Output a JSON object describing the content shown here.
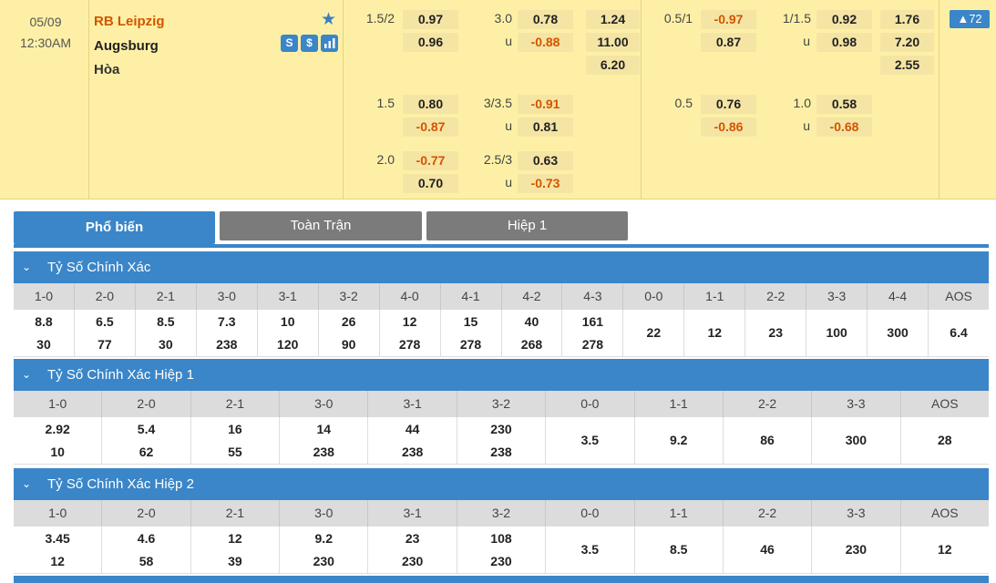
{
  "match": {
    "date": "05/09",
    "time": "12:30AM",
    "home": "RB Leipzig",
    "away": "Augsburg",
    "draw": "Hòa",
    "more_count": "▲72"
  },
  "icons": [
    "star-icon",
    "stats-s-icon",
    "dollar-icon",
    "bar-chart-icon"
  ],
  "odds": {
    "ft_hdp": [
      [
        "1.5/2",
        "0.97",
        "0.96"
      ],
      [
        "1.5",
        "0.80",
        "-0.87"
      ],
      [
        "2.0",
        "-0.77",
        "0.70"
      ]
    ],
    "ft_ou": [
      [
        "3.0",
        "0.78",
        "u",
        "-0.88"
      ],
      [
        "3/3.5",
        "-0.91",
        "u",
        "0.81"
      ],
      [
        "2.5/3",
        "0.63",
        "u",
        "-0.73"
      ]
    ],
    "ft_1x2": [
      "1.24",
      "11.00",
      "6.20"
    ],
    "h1_hdp": [
      [
        "0.5/1",
        "-0.97",
        "0.87"
      ],
      [
        "0.5",
        "0.76",
        "-0.86"
      ]
    ],
    "h1_ou": [
      [
        "1/1.5",
        "0.92",
        "u",
        "0.98"
      ],
      [
        "1.0",
        "0.58",
        "u",
        "-0.68"
      ]
    ],
    "h1_1x2": [
      "1.76",
      "7.20",
      "2.55"
    ]
  },
  "tabs": [
    "Phổ biến",
    "Toàn Trận",
    "Hiệp 1"
  ],
  "sections": [
    {
      "title": "Tỷ Số Chính Xác",
      "headers": [
        "1-0",
        "2-0",
        "2-1",
        "3-0",
        "3-1",
        "3-2",
        "4-0",
        "4-1",
        "4-2",
        "4-3",
        "0-0",
        "1-1",
        "2-2",
        "3-3",
        "4-4",
        "AOS"
      ],
      "top": [
        "8.8",
        "6.5",
        "8.5",
        "7.3",
        "10",
        "26",
        "12",
        "15",
        "40",
        "161",
        "22",
        "12",
        "23",
        "100",
        "300",
        "6.4"
      ],
      "bottom": [
        "30",
        "77",
        "30",
        "238",
        "120",
        "90",
        "278",
        "278",
        "268",
        "278",
        "",
        "",
        "",
        "",
        "",
        ""
      ]
    },
    {
      "title": "Tỷ Số Chính Xác Hiệp 1",
      "headers": [
        "1-0",
        "2-0",
        "2-1",
        "3-0",
        "3-1",
        "3-2",
        "0-0",
        "1-1",
        "2-2",
        "3-3",
        "AOS"
      ],
      "top": [
        "2.92",
        "5.4",
        "16",
        "14",
        "44",
        "230",
        "3.5",
        "9.2",
        "86",
        "300",
        "28"
      ],
      "bottom": [
        "10",
        "62",
        "55",
        "238",
        "238",
        "238",
        "",
        "",
        "",
        "",
        ""
      ]
    },
    {
      "title": "Tỷ Số Chính Xác Hiệp 2",
      "headers": [
        "1-0",
        "2-0",
        "2-1",
        "3-0",
        "3-1",
        "3-2",
        "0-0",
        "1-1",
        "2-2",
        "3-3",
        "AOS"
      ],
      "top": [
        "3.45",
        "4.6",
        "12",
        "9.2",
        "23",
        "108",
        "3.5",
        "8.5",
        "46",
        "230",
        "12"
      ],
      "bottom": [
        "12",
        "58",
        "39",
        "230",
        "230",
        "230",
        "",
        "",
        "",
        "",
        ""
      ]
    }
  ]
}
